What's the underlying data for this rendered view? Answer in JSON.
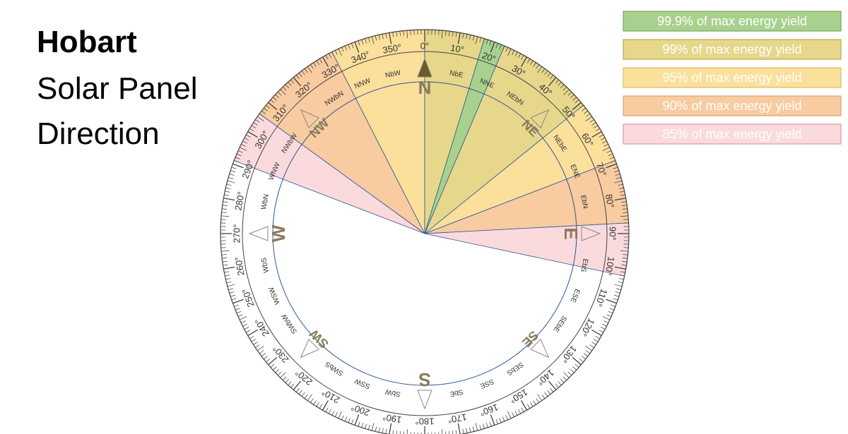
{
  "title": {
    "city": "Hobart",
    "line2": "Solar Panel",
    "line3": "Direction"
  },
  "legend": [
    {
      "label": "99.9% of max energy yield",
      "color": "#a9d18e",
      "border": "#6a9a4a"
    },
    {
      "label": "99% of max energy yield",
      "color": "#e6d78a",
      "border": "#b09a40"
    },
    {
      "label": "95% of max energy yield",
      "color": "#fbe09c",
      "border": "#d4b050"
    },
    {
      "label": "90% of max energy yield",
      "color": "#f8cba0",
      "border": "#d09a60"
    },
    {
      "label": "85% of max energy yield",
      "color": "#fbdadd",
      "border": "#d08a90"
    }
  ],
  "sectors": [
    {
      "start": 291,
      "end": 306,
      "color": "#fbdadd"
    },
    {
      "start": 306,
      "end": 333,
      "color": "#f8cba0"
    },
    {
      "start": 333,
      "end": 360,
      "color": "#fbe09c"
    },
    {
      "start": 0,
      "end": 17,
      "color": "#e6d78a"
    },
    {
      "start": 17,
      "end": 23,
      "color": "#a9d18e"
    },
    {
      "start": 23,
      "end": 51,
      "color": "#e6d78a"
    },
    {
      "start": 51,
      "end": 69,
      "color": "#fbe09c"
    },
    {
      "start": 69,
      "end": 87,
      "color": "#f8cba0"
    },
    {
      "start": 87,
      "end": 102,
      "color": "#fbdadd"
    }
  ],
  "degree_labels": [
    "0°",
    "10°",
    "20°",
    "30°",
    "40°",
    "50°",
    "60°",
    "70°",
    "80°",
    "90°",
    "100°",
    "110°",
    "120°",
    "130°",
    "140°",
    "150°",
    "160°",
    "170°",
    "180°",
    "190°",
    "200°",
    "210°",
    "220°",
    "230°",
    "240°",
    "250°",
    "260°",
    "270°",
    "280°",
    "290°",
    "300°",
    "310°",
    "320°",
    "330°",
    "340°",
    "350°"
  ],
  "compass_points": [
    "N",
    "NbE",
    "NNE",
    "NEbN",
    "NE",
    "NEbE",
    "ENE",
    "EbN",
    "E",
    "EbS",
    "ESE",
    "SEbE",
    "SE",
    "SEbS",
    "SSE",
    "SbE",
    "S",
    "SbW",
    "SSW",
    "SWbS",
    "SW",
    "SWbW",
    "WSW",
    "WbS",
    "W",
    "WbN",
    "WNW",
    "NWbW",
    "NW",
    "NWbN",
    "NNW",
    "NbW"
  ]
}
